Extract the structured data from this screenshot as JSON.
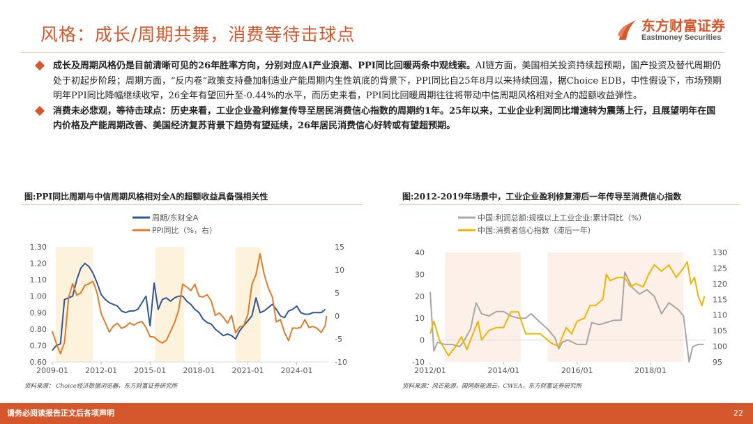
{
  "header": {
    "title": "风格：成长/周期共舞，消费等待击球点",
    "logo_cn": "东方财富证券",
    "logo_en": "Eastmoney Securities",
    "brand_color": "#d5582c"
  },
  "bullets": [
    {
      "bold": "成长及周期风格仍是目前清晰可见的26年胜率方向，分别对应AI产业浪潮、PPI同比回暖两条中观线索。",
      "text": "AI链方面，美国相关投资持续超预期，国产投资及替代周期仍处于初起步阶段；周期方面，“反内卷”政策支持叠加制造业产能周期内生性筑底的背景下，PPI同比自25年8月以来持续回温，据Choice EDB，中性假设下，市场预期明年PPI同比降幅继续收窄，26全年有望回升至-0.44%的水平，而历史来看，PPI同比回暖周期往往将带动中信周期风格相对全A的超额收益弹性。"
    },
    {
      "bold": "消费未必悲观，等待击球点：历史来看，工业企业盈利修复传导至居民消费信心指数的周期约1年。25年以来，工业企业利润同比增速转为震荡上行，且展望明年在国内价格及产能周期改善、美国经济复苏背景下趋势有望延续，26年居民消费信心好转或有望超预期。",
      "text": ""
    }
  ],
  "footer": {
    "disclaimer": "请务必阅读报告正文后各项声明",
    "page": "22"
  },
  "chart_data": [
    {
      "type": "line",
      "title": "图:PPI同比周期与中信周期风格相对全A的超额收益具备强相关性",
      "source": "资料来源： Choice经济数据浏览器，东方财富证券研究所",
      "x_ticks": [
        "2009-01",
        "2012-01",
        "2015-01",
        "2018-01",
        "2021-01",
        "2024-01"
      ],
      "x_tick_values": [
        2009,
        2012,
        2015,
        2018,
        2021,
        2024
      ],
      "xlim": [
        2009,
        2025.9
      ],
      "y_left": {
        "lim": [
          0.6,
          1.3
        ],
        "ticks": [
          "0.60",
          "0.70",
          "0.80",
          "0.90",
          "1.00",
          "1.10",
          "1.20",
          "1.30"
        ]
      },
      "y_right": {
        "lim": [
          -10,
          15
        ],
        "ticks": [
          "-10",
          "-5",
          "0",
          "5",
          "10",
          "15"
        ]
      },
      "shaded_periods": [
        [
          2009.2,
          2011.5
        ],
        [
          2015.3,
          2017.1
        ],
        [
          2020.25,
          2021.8
        ]
      ],
      "shade_color": "#fdf3dc",
      "series": [
        {
          "name": "周期/东财全A",
          "axis": "left",
          "color": "#2f5597",
          "x": [
            2009,
            2009.25,
            2009.5,
            2009.75,
            2010,
            2010.25,
            2010.5,
            2010.75,
            2011,
            2011.25,
            2011.5,
            2011.75,
            2012,
            2012.25,
            2012.5,
            2012.75,
            2013,
            2013.25,
            2013.5,
            2013.75,
            2014,
            2014.25,
            2014.5,
            2014.75,
            2015,
            2015.25,
            2015.5,
            2015.75,
            2016,
            2016.25,
            2016.5,
            2016.75,
            2017,
            2017.25,
            2017.5,
            2017.75,
            2018,
            2018.25,
            2018.5,
            2018.75,
            2019,
            2019.25,
            2019.5,
            2019.75,
            2020,
            2020.25,
            2020.5,
            2020.75,
            2021,
            2021.25,
            2021.5,
            2021.75,
            2022,
            2022.25,
            2022.5,
            2022.75,
            2023,
            2023.25,
            2023.5,
            2023.75,
            2024,
            2024.25,
            2024.5,
            2024.75,
            2025,
            2025.25,
            2025.5,
            2025.75
          ],
          "values": [
            0.67,
            0.7,
            0.71,
            0.98,
            0.99,
            1.0,
            1.1,
            1.17,
            1.2,
            1.18,
            1.14,
            1.08,
            1.01,
            0.98,
            0.96,
            0.95,
            0.94,
            0.91,
            0.9,
            0.91,
            0.91,
            0.92,
            0.96,
            1.0,
            0.82,
            1.08,
            0.92,
            0.98,
            0.99,
            0.97,
            0.99,
            1.0,
            1.0,
            0.97,
            0.95,
            0.92,
            0.9,
            0.86,
            0.84,
            0.83,
            0.8,
            0.78,
            0.76,
            0.77,
            0.76,
            0.74,
            0.79,
            0.82,
            0.85,
            0.88,
            0.99,
            0.9,
            0.91,
            0.93,
            0.95,
            0.92,
            0.88,
            0.87,
            0.91,
            0.92,
            0.94,
            0.9,
            0.89,
            0.89,
            0.9,
            0.9,
            0.9,
            0.92
          ]
        },
        {
          "name": "PPI同比（%，右）",
          "axis": "right",
          "color": "#e07b2a",
          "x": [
            2009,
            2009.25,
            2009.5,
            2009.75,
            2010,
            2010.25,
            2010.5,
            2010.75,
            2011,
            2011.25,
            2011.5,
            2011.75,
            2012,
            2012.25,
            2012.5,
            2012.75,
            2013,
            2013.25,
            2013.5,
            2013.75,
            2014,
            2014.25,
            2014.5,
            2014.75,
            2015,
            2015.25,
            2015.5,
            2015.75,
            2016,
            2016.25,
            2016.5,
            2016.75,
            2017,
            2017.25,
            2017.5,
            2017.75,
            2018,
            2018.25,
            2018.5,
            2018.75,
            2019,
            2019.25,
            2019.5,
            2019.75,
            2020,
            2020.25,
            2020.5,
            2020.75,
            2021,
            2021.25,
            2021.5,
            2021.75,
            2022,
            2022.25,
            2022.5,
            2022.75,
            2023,
            2023.25,
            2023.5,
            2023.75,
            2024,
            2024.25,
            2024.5,
            2024.75,
            2025,
            2025.25,
            2025.5,
            2025.75,
            2025.83
          ],
          "values": [
            -3.3,
            -6,
            -8.2,
            -5.8,
            4,
            7,
            4.5,
            5,
            6.6,
            7,
            7.5,
            5,
            0.5,
            -1.5,
            -3.5,
            -2.2,
            -1.6,
            -2.7,
            -2.3,
            -1.5,
            -2,
            -1.5,
            -1.2,
            -2.5,
            -4.5,
            -4.6,
            -5.4,
            -5.9,
            -5.3,
            -3.4,
            -1.5,
            1.2,
            6.9,
            6.3,
            5.5,
            6.9,
            4.3,
            4.1,
            4.6,
            3.3,
            0.1,
            0.6,
            -0.3,
            -1.6,
            0.1,
            -3.7,
            -2.4,
            -2.1,
            0.3,
            6.8,
            9,
            13.5,
            9.1,
            6.1,
            4.2,
            -1.3,
            -0.8,
            -3.6,
            -5.4,
            -2.6,
            -2.7,
            -2.5,
            -0.8,
            -2.5,
            -2.3,
            -2.7,
            -3.6,
            -2.1,
            0
          ]
        }
      ]
    },
    {
      "type": "line",
      "title": "图:2012-2019年场景中，工业企业盈利修复滞后一年传导至消费信心指数",
      "source": "资料来源：风芒能源，国网新能源云，CWEA，东方财富证券研究所",
      "x_ticks": [
        "2012/01",
        "2014/01",
        "2016/01",
        "2018/01"
      ],
      "x_tick_values": [
        2012,
        2014,
        2016,
        2018
      ],
      "xlim": [
        2012,
        2019.5
      ],
      "y_left": {
        "lim": [
          -10,
          40
        ],
        "ticks": [
          "-10",
          "0",
          "10",
          "20",
          "30",
          "40"
        ]
      },
      "y_right": {
        "lim": [
          95,
          130
        ],
        "ticks": [
          "95",
          "100",
          "105",
          "110",
          "115",
          "120",
          "125",
          "130"
        ]
      },
      "shaded_periods": [
        [
          2012.4,
          2014.47
        ],
        [
          2015.2,
          2018.9
        ]
      ],
      "shade_color": "#fdf0e8",
      "series": [
        {
          "name": "中国:利润总额:规模以上工业企业:累计同比（%）",
          "axis": "left",
          "color": "#a6a6a6",
          "x": [
            2012,
            2012.1,
            2012.2,
            2012.4,
            2012.6,
            2012.8,
            2012.9,
            2013.1,
            2013.25,
            2013.4,
            2013.6,
            2013.8,
            2014,
            2014.2,
            2014.4,
            2014.6,
            2014.75,
            2015,
            2015.2,
            2015.4,
            2015.5,
            2015.6,
            2015.75,
            2016,
            2016.25,
            2016.4,
            2016.6,
            2016.8,
            2017,
            2017.2,
            2017.3,
            2017.5,
            2017.7,
            2017.9,
            2018.1,
            2018.3,
            2018.5,
            2018.75,
            2018.9,
            2019.05,
            2019.15,
            2019.3,
            2019.45
          ],
          "values": [
            22,
            -5,
            -1,
            -2,
            -2,
            -3,
            -1,
            5,
            17,
            12,
            11,
            13,
            13,
            11,
            10,
            10,
            12,
            8,
            5,
            1,
            -4,
            -1,
            0,
            -2,
            -2,
            8,
            7,
            8,
            9,
            9,
            31,
            24,
            21,
            23,
            20,
            12,
            17,
            14,
            11,
            -10,
            -3,
            -2,
            -2
          ]
        },
        {
          "name": "中国:消费者信心指数（滞后一年）",
          "axis": "right",
          "color": "#f0b400",
          "x": [
            2012,
            2012.1,
            2012.25,
            2012.5,
            2012.7,
            2012.85,
            2013,
            2013.1,
            2013.3,
            2013.4,
            2013.6,
            2013.8,
            2014,
            2014.2,
            2014.4,
            2014.6,
            2014.8,
            2015,
            2015.3,
            2015.5,
            2015.7,
            2015.85,
            2016,
            2016.2,
            2016.35,
            2016.5,
            2016.7,
            2016.8,
            2016.9,
            2017.1,
            2017.3,
            2017.45,
            2017.6,
            2017.8,
            2017.95,
            2018.1,
            2018.3,
            2018.5,
            2018.7,
            2018.9,
            2019,
            2019.1,
            2019.2,
            2019.3,
            2019.4,
            2019.47
          ],
          "values": [
            104,
            108,
            102,
            97,
            100,
            103,
            99,
            102,
            108,
            102,
            105,
            106,
            106,
            111,
            111,
            104,
            104,
            104,
            101,
            100,
            106,
            104,
            108,
            109,
            113,
            113,
            115,
            123,
            121,
            122,
            122,
            119,
            120,
            119,
            123,
            126,
            124,
            126,
            122,
            125,
            127,
            120,
            122,
            116,
            113,
            116
          ]
        }
      ]
    }
  ]
}
